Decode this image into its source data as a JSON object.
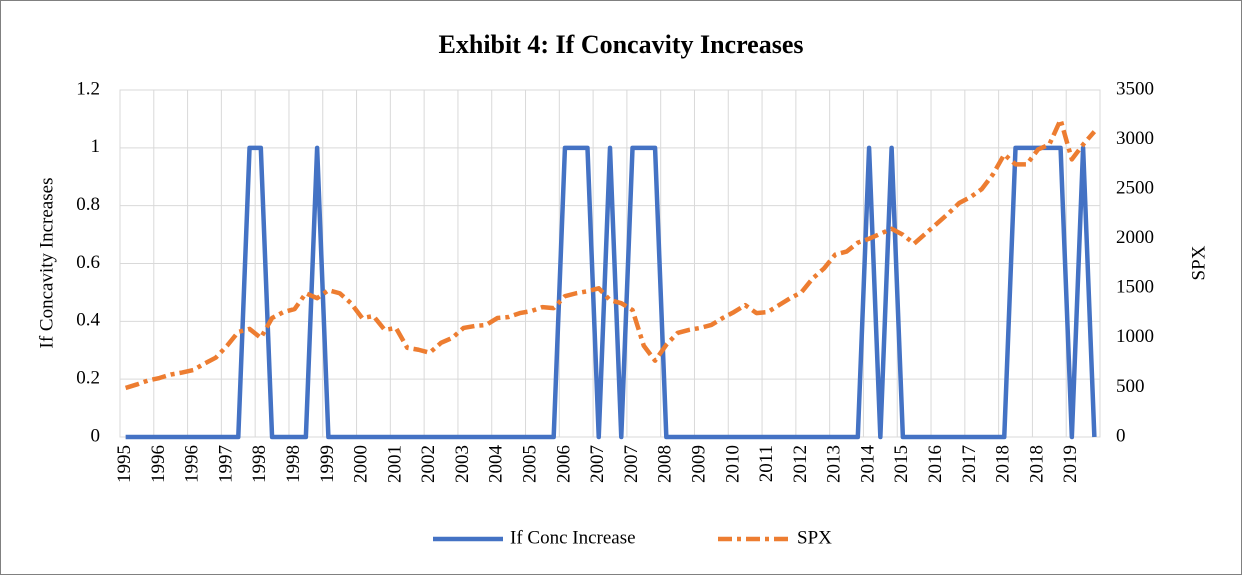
{
  "chart_data": {
    "type": "line",
    "title": "Exhibit 4: If Concavity Increases",
    "y_label": "If Concavity Increases",
    "y2_label": "SPX",
    "categories": [
      "1995",
      null,
      null,
      "1996",
      null,
      null,
      "1996",
      null,
      null,
      "1997",
      null,
      null,
      "1998",
      null,
      null,
      "1998",
      null,
      null,
      "1999",
      null,
      null,
      "2000",
      null,
      null,
      "2001",
      null,
      null,
      "2002",
      null,
      null,
      "2003",
      null,
      null,
      "2004",
      null,
      null,
      "2005",
      null,
      null,
      "2006",
      null,
      null,
      "2007",
      null,
      null,
      "2007",
      null,
      null,
      "2008",
      null,
      null,
      "2009",
      null,
      null,
      "2010",
      null,
      null,
      "2011",
      null,
      null,
      "2012",
      null,
      null,
      "2013",
      null,
      null,
      "2014",
      null,
      null,
      "2015",
      null,
      null,
      "2016",
      null,
      null,
      "2017",
      null,
      null,
      "2018",
      null,
      null,
      "2018",
      null,
      null,
      "2019",
      null,
      null
    ],
    "series": [
      {
        "name": "If Conc Increase",
        "color": "#4472c4",
        "axis": "y",
        "values": [
          0,
          0,
          0,
          0,
          0,
          0,
          0,
          0,
          0,
          0,
          0,
          1,
          1,
          0,
          0,
          0,
          0,
          1,
          0,
          0,
          0,
          0,
          0,
          0,
          0,
          0,
          0,
          0,
          0,
          0,
          0,
          0,
          0,
          0,
          0,
          0,
          0,
          0,
          0,
          1,
          1,
          1,
          0,
          1,
          0,
          1,
          1,
          1,
          0,
          0,
          0,
          0,
          0,
          0,
          0,
          0,
          0,
          0,
          0,
          0,
          0,
          0,
          0,
          0,
          0,
          0,
          1,
          0,
          1,
          0,
          0,
          0,
          0,
          0,
          0,
          0,
          0,
          0,
          0,
          1,
          1,
          1,
          1,
          1,
          0,
          1,
          0
        ]
      },
      {
        "name": "SPX",
        "color": "#ed7d31",
        "axis": "y2",
        "values": [
          495,
          530,
          570,
          595,
          630,
          650,
          675,
          740,
          800,
          920,
          1060,
          1090,
          1000,
          1200,
          1260,
          1290,
          1450,
          1400,
          1480,
          1450,
          1350,
          1200,
          1220,
          1080,
          1100,
          900,
          880,
          850,
          950,
          1000,
          1100,
          1120,
          1130,
          1200,
          1210,
          1250,
          1270,
          1310,
          1300,
          1420,
          1450,
          1470,
          1500,
          1380,
          1350,
          1280,
          920,
          770,
          930,
          1050,
          1080,
          1100,
          1130,
          1200,
          1260,
          1330,
          1250,
          1260,
          1330,
          1400,
          1460,
          1600,
          1700,
          1840,
          1870,
          1960,
          2000,
          2050,
          2100,
          2040,
          1950,
          2050,
          2150,
          2250,
          2360,
          2420,
          2500,
          2650,
          2850,
          2750,
          2750,
          2900,
          2950,
          3200,
          2800,
          2950,
          3080
        ]
      }
    ],
    "ylim": [
      0,
      1.2
    ],
    "yticks": [
      0,
      0.2,
      0.4,
      0.6,
      0.8,
      1,
      1.2
    ],
    "y2lim": [
      0,
      3500
    ],
    "y2ticks": [
      0,
      500,
      1000,
      1500,
      2000,
      2500,
      3000,
      3500
    ],
    "grid": true
  }
}
